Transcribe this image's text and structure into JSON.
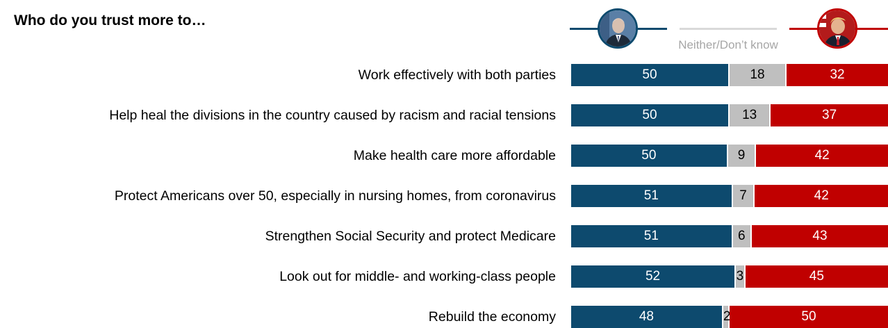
{
  "title": "Who do you trust more to…",
  "legend": {
    "neither_label": "Neither/Don’t know"
  },
  "colors": {
    "candidate_a": "#0d4a6e",
    "neither": "#bfbfbf",
    "candidate_b": "#c00000",
    "neither_text": "#a6a6a6"
  },
  "chart_data": {
    "type": "bar",
    "orientation": "horizontal-stacked",
    "categories": [
      "Work effectively with both parties",
      "Help heal the divisions in the country caused by racism and racial tensions",
      "Make health care more affordable",
      "Protect Americans over 50, especially in nursing homes, from coronavirus",
      "Strengthen Social Security and protect Medicare",
      "Look out for middle- and working-class people",
      "Rebuild the economy"
    ],
    "series": [
      {
        "values": [
          50,
          50,
          50,
          51,
          51,
          52,
          48
        ]
      },
      {
        "name": "Neither/Don’t know",
        "values": [
          18,
          13,
          9,
          7,
          6,
          3,
          2
        ]
      },
      {
        "values": [
          32,
          37,
          42,
          42,
          43,
          45,
          50
        ]
      }
    ],
    "xlim": [
      0,
      100
    ]
  }
}
